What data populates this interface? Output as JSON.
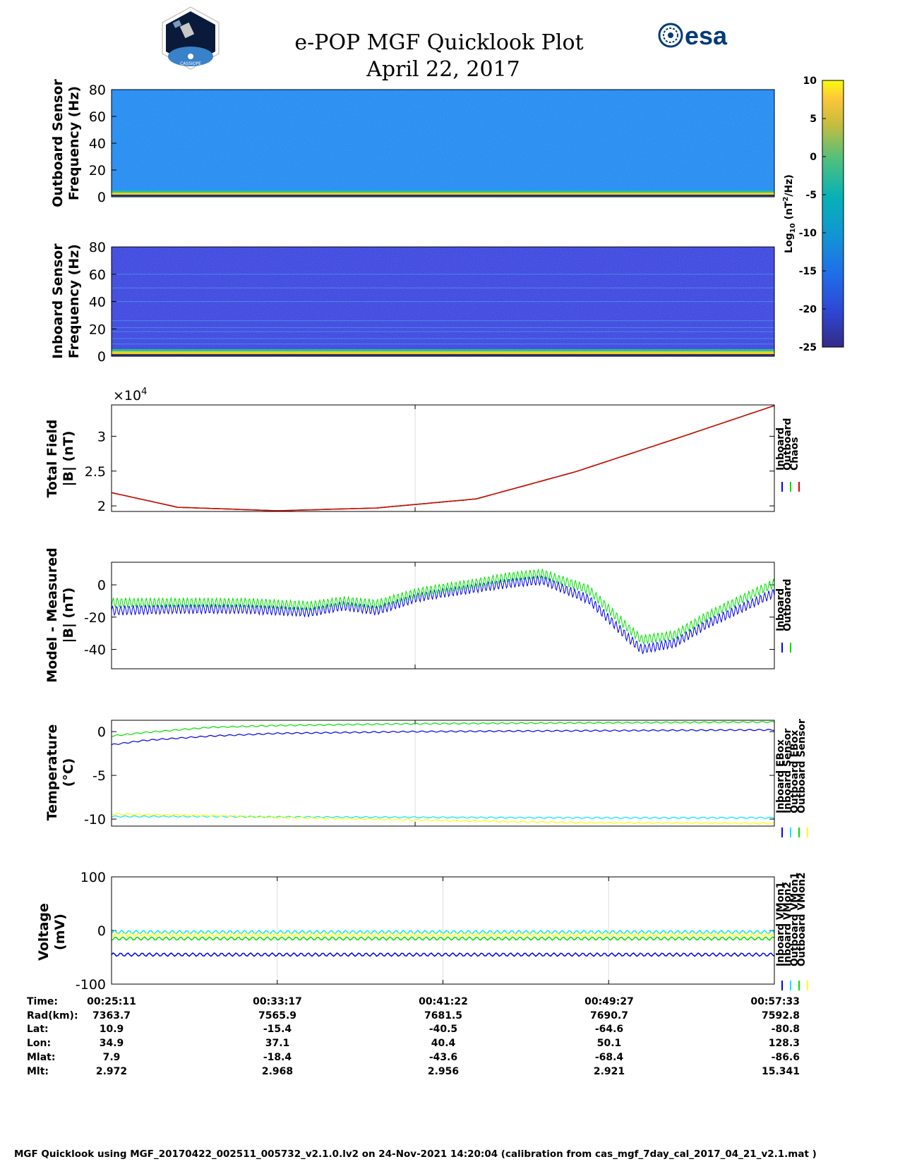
{
  "header": {
    "title": "e-POP MGF Quicklook Plot",
    "date": "April 22, 2017",
    "esa_logo_text": "esa",
    "mission_logo_text": "CASSIOPE"
  },
  "colors": {
    "inboard": "#0000ee",
    "outboard": "#00e000",
    "chaos": "#e00000",
    "inboard_sensor": "#00e5ff",
    "outboard_sensor": "#ffff00",
    "spec_outboard_bg": "#1f82f0",
    "spec_inboard_bg": "#3339d8",
    "esa_blue": "#003b7a"
  },
  "chart_data": [
    {
      "type": "heatmap",
      "name": "outboard-spectrogram",
      "ylabel_line1": "Outboard Sensor",
      "ylabel_line2": "Frequency (Hz)",
      "ylim": [
        0,
        80
      ],
      "yticks": [
        "80",
        "60",
        "40",
        "20",
        "0"
      ],
      "description_values": {
        "background_log10": -14,
        "low_band_log10": 2
      }
    },
    {
      "type": "heatmap",
      "name": "inboard-spectrogram",
      "ylabel_line1": "Inboard Sensor",
      "ylabel_line2": "Frequency (Hz)",
      "ylim": [
        0,
        80
      ],
      "yticks": [
        "80",
        "60",
        "40",
        "20",
        "0"
      ],
      "harmonic_lines_hz": [
        5,
        9,
        13,
        18,
        21,
        26,
        40,
        50,
        60
      ]
    },
    {
      "type": "colorbar",
      "label": "Log10 (nT^2/Hz)",
      "label_base": "Log",
      "label_sub": "10",
      "label_rest": " (nT",
      "label_sup": "2",
      "label_end": "/Hz)",
      "range": [
        -25,
        10
      ],
      "ticks": [
        "10",
        "5",
        "0",
        "-5",
        "-10",
        "-15",
        "-20",
        "-25"
      ]
    },
    {
      "type": "line",
      "name": "total-field",
      "ylabel_line1": "Total Field",
      "ylabel_line2": "|B| (nT)",
      "exponent_label": "×10",
      "exponent_power": "4",
      "ylim": [
        1.92,
        3.45
      ],
      "yticks": [
        "3",
        "2.5",
        "2"
      ],
      "x": [
        0,
        0.1,
        0.25,
        0.4,
        0.55,
        0.7,
        0.85,
        1.0
      ],
      "series": [
        {
          "name": "Inboard",
          "values": [
            2.19,
            1.98,
            1.93,
            1.97,
            2.1,
            2.49,
            2.96,
            3.44
          ]
        },
        {
          "name": "Outboard",
          "values": [
            2.19,
            1.98,
            1.93,
            1.97,
            2.1,
            2.49,
            2.96,
            3.44
          ]
        },
        {
          "name": "Chaos",
          "values": [
            2.19,
            1.98,
            1.93,
            1.97,
            2.1,
            2.49,
            2.96,
            3.44
          ]
        }
      ],
      "legend": [
        "Inboard",
        "Outboard",
        "Chaos"
      ]
    },
    {
      "type": "line",
      "name": "model-minus-measured",
      "ylabel_line1": "Model - Measured",
      "ylabel_line2": "|B| (nT)",
      "ylim": [
        -52,
        14
      ],
      "yticks": [
        "0",
        "-20",
        "-40"
      ],
      "x": [
        0,
        0.1,
        0.2,
        0.3,
        0.35,
        0.4,
        0.46,
        0.5,
        0.55,
        0.6,
        0.65,
        0.72,
        0.78,
        0.8,
        0.85,
        0.9,
        1.0
      ],
      "series": [
        {
          "name": "Inboard",
          "values": [
            -16,
            -15,
            -15,
            -17,
            -13,
            -16,
            -8,
            -5,
            -2,
            1,
            3,
            -9,
            -33,
            -40,
            -36,
            -24,
            -5
          ]
        },
        {
          "name": "Outboard",
          "values": [
            -11,
            -11,
            -11,
            -13,
            -10,
            -12,
            -5,
            -2,
            1,
            5,
            7,
            -3,
            -27,
            -34,
            -31,
            -19,
            1
          ]
        }
      ],
      "legend": [
        "Inboard",
        "Outboard"
      ]
    },
    {
      "type": "line",
      "name": "temperature",
      "ylabel_line1": "Temperature",
      "ylabel_line2": "(°C)",
      "ylim": [
        -10.8,
        1.3
      ],
      "yticks": [
        "0",
        "-5",
        "-10"
      ],
      "x": [
        0,
        0.05,
        0.15,
        0.25,
        0.45,
        0.7,
        1.0
      ],
      "series": [
        {
          "name": "Inboard EBox",
          "values": [
            -1.5,
            -1.0,
            -0.5,
            -0.2,
            0.0,
            0.1,
            0.2
          ]
        },
        {
          "name": "Inboard Sensor",
          "values": [
            -9.7,
            -9.7,
            -9.7,
            -9.75,
            -9.8,
            -9.85,
            -9.85
          ]
        },
        {
          "name": "Outboard EBox",
          "values": [
            -0.5,
            -0.1,
            0.5,
            0.7,
            0.9,
            1.0,
            1.1
          ]
        },
        {
          "name": "Outboard Sensor",
          "values": [
            -9.4,
            -9.5,
            -9.6,
            -9.8,
            -10.1,
            -10.4,
            -10.5
          ]
        }
      ],
      "legend": [
        "Inboard EBox",
        "Inboard Sensor",
        "Outboard EBox",
        "Outboard Sensor"
      ]
    },
    {
      "type": "line",
      "name": "voltage",
      "ylabel_line1": "Voltage",
      "ylabel_line2": "(mV)",
      "ylim": [
        -100,
        100
      ],
      "yticks": [
        "100",
        "0",
        "-100"
      ],
      "x": [
        0,
        1.0
      ],
      "series": [
        {
          "name": "Inboard VMon1",
          "values": [
            -45,
            -45
          ]
        },
        {
          "name": "Inboard VMon2",
          "values": [
            -3,
            -3
          ]
        },
        {
          "name": "Outboard VMon1",
          "values": [
            -15,
            -15
          ]
        },
        {
          "name": "Outboard VMon2",
          "values": [
            -8,
            -8
          ]
        }
      ],
      "legend": [
        "Inboard VMon1",
        "Inboard VMon2",
        "Outboard VMon1",
        "Outboard VMon2"
      ]
    }
  ],
  "orbit_table": {
    "row_labels": [
      "Time:",
      "Rad(km):",
      "Lat:",
      "Lon:",
      "Mlat:",
      "Mlt:"
    ],
    "columns": [
      [
        "00:25:11",
        "7363.7",
        "10.9",
        "34.9",
        "7.9",
        "2.972"
      ],
      [
        "00:33:17",
        "7565.9",
        "-15.4",
        "37.1",
        "-18.4",
        "2.968"
      ],
      [
        "00:41:22",
        "7681.5",
        "-40.5",
        "40.4",
        "-43.6",
        "2.956"
      ],
      [
        "00:49:27",
        "7690.7",
        "-64.6",
        "50.1",
        "-68.4",
        "2.921"
      ],
      [
        "00:57:33",
        "7592.8",
        "-80.8",
        "128.3",
        "-86.6",
        "15.341"
      ]
    ]
  },
  "footer": "MGF Quicklook using MGF_20170422_002511_005732_v2.1.0.lv2 on 24-Nov-2021 14:20:04 (calibration from cas_mgf_7day_cal_2017_04_21_v2.1.mat )"
}
